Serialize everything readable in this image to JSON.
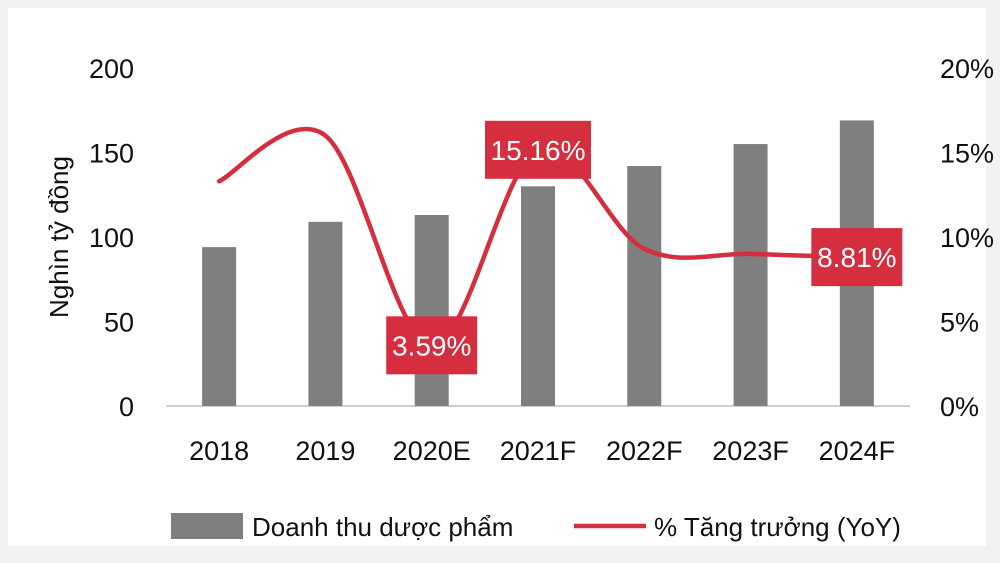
{
  "chart_data": {
    "type": "bar",
    "categories": [
      "2018",
      "2019",
      "2020E",
      "2021F",
      "2022F",
      "2023F",
      "2024F"
    ],
    "series": [
      {
        "name": "Doanh thu dược phẩm",
        "type": "bar",
        "axis": "left",
        "values": [
          94,
          109,
          113,
          130,
          142,
          155,
          169
        ]
      },
      {
        "name": "% Tăng trưởng (YoY)",
        "type": "line",
        "axis": "right",
        "values": [
          13.3,
          16.0,
          3.59,
          15.16,
          9.3,
          9.0,
          8.81
        ]
      }
    ],
    "ylabel": "Nghìn tỷ đồng",
    "xlabel": "",
    "ylim": [
      0,
      200
    ],
    "y_ticks": [
      "0",
      "50",
      "100",
      "150",
      "200"
    ],
    "y2lim": [
      0,
      20
    ],
    "y2_ticks": [
      "0%",
      "5%",
      "10%",
      "15%",
      "20%"
    ],
    "annotations": [
      {
        "category": "2020E",
        "label": "3.59%"
      },
      {
        "category": "2021F",
        "label": "15.16%"
      },
      {
        "category": "2024F",
        "label": "8.81%"
      }
    ],
    "legend_position": "bottom",
    "grid": false,
    "colors": {
      "bar": "#7f7f7f",
      "line": "#d42e3f",
      "callout": "#d42e3f"
    }
  }
}
